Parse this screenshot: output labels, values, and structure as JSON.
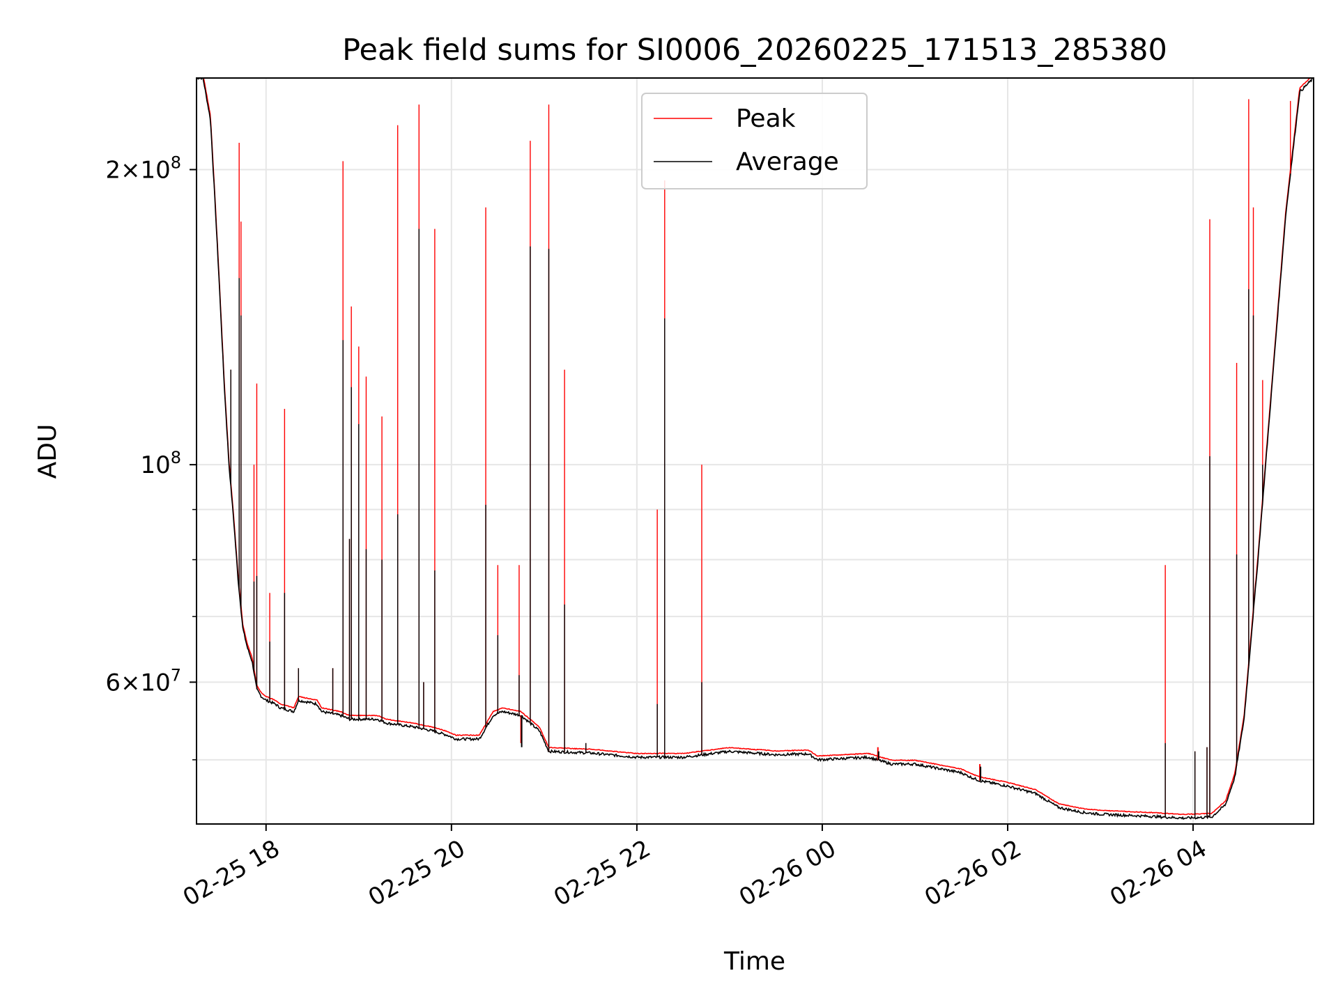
{
  "chart_data": {
    "type": "line",
    "title": "Peak field sums for SI0006_20260225_171513_285380",
    "xlabel": "Time",
    "ylabel": "ADU",
    "yscale": "log",
    "xlim_hours": [
      17.25,
      29.3
    ],
    "ylim": [
      43000000,
      248000000
    ],
    "x_ticks": [
      {
        "hours": 18,
        "label": "02-25 18"
      },
      {
        "hours": 20,
        "label": "02-25 20"
      },
      {
        "hours": 22,
        "label": "02-25 22"
      },
      {
        "hours": 24,
        "label": "02-26 00"
      },
      {
        "hours": 26,
        "label": "02-26 02"
      },
      {
        "hours": 28,
        "label": "02-26 04"
      }
    ],
    "y_major_ticks": [
      {
        "value": 60000000,
        "mantissa": "6",
        "exponent": "7"
      },
      {
        "value": 100000000,
        "mantissa": "",
        "exponent": "8"
      },
      {
        "value": 200000000,
        "mantissa": "2",
        "exponent": "8"
      }
    ],
    "y_minor_ticks": [
      50000000,
      70000000,
      80000000,
      90000000
    ],
    "grid": true,
    "legend": {
      "position": "upper-center",
      "entries": [
        {
          "name": "Peak",
          "color": "#ff0000"
        },
        {
          "name": "Average",
          "color": "#000000"
        }
      ]
    },
    "baseline": {
      "x_hours": [
        17.25,
        17.32,
        17.4,
        17.45,
        17.5,
        17.55,
        17.6,
        17.65,
        17.7,
        17.75,
        17.8,
        17.85,
        17.9,
        17.95,
        18.0,
        18.1,
        18.15,
        18.3,
        18.35,
        18.55,
        18.6,
        18.8,
        18.9,
        19.2,
        19.3,
        19.6,
        19.8,
        19.95,
        20.05,
        20.3,
        20.45,
        20.55,
        20.75,
        20.95,
        21.05,
        21.5,
        22.0,
        22.5,
        23.0,
        23.5,
        23.85,
        23.95,
        24.5,
        24.65,
        24.75,
        25.0,
        25.5,
        25.6,
        25.7,
        26.0,
        26.3,
        26.55,
        26.8,
        27.0,
        27.5,
        27.9,
        28.2,
        28.35,
        28.45,
        28.55,
        28.7,
        28.85,
        29.0,
        29.15,
        29.3
      ],
      "y_values": [
        248000000,
        248000000,
        225000000,
        185000000,
        150000000,
        120000000,
        100000000,
        88000000,
        76000000,
        68000000,
        65000000,
        63000000,
        59000000,
        58000000,
        57500000,
        57000000,
        56500000,
        56000000,
        57500000,
        57000000,
        56000000,
        55500000,
        55000000,
        55000000,
        54500000,
        54000000,
        53500000,
        53000000,
        52500000,
        52500000,
        55500000,
        56000000,
        55500000,
        53500000,
        51000000,
        50800000,
        50300000,
        50300000,
        51000000,
        50600000,
        50700000,
        50000000,
        50300000,
        49800000,
        49500000,
        49500000,
        48500000,
        48000000,
        47600000,
        47000000,
        46200000,
        44700000,
        44200000,
        44000000,
        43800000,
        43600000,
        43700000,
        45000000,
        48000000,
        55000000,
        80000000,
        120000000,
        180000000,
        240000000,
        248000000
      ]
    },
    "bumps": [
      {
        "x_hours": 24.6,
        "peak": 51500000,
        "average": 51000000
      },
      {
        "x_hours": 25.7,
        "peak": 49500000,
        "average": 49200000
      },
      {
        "x_hours": 20.75,
        "peak": 52000000,
        "average": 51500000
      }
    ],
    "spikes": [
      {
        "x_hours": 17.62,
        "peak": 125000000,
        "average": 125000000
      },
      {
        "x_hours": 17.71,
        "peak": 213000000,
        "average": 155000000
      },
      {
        "x_hours": 17.73,
        "peak": 177000000,
        "average": 142000000
      },
      {
        "x_hours": 17.87,
        "peak": 100000000,
        "average": 76000000
      },
      {
        "x_hours": 17.9,
        "peak": 121000000,
        "average": 77000000
      },
      {
        "x_hours": 18.04,
        "peak": 74000000,
        "average": 66000000
      },
      {
        "x_hours": 18.2,
        "peak": 114000000,
        "average": 74000000
      },
      {
        "x_hours": 18.35,
        "peak": 62000000,
        "average": 62000000
      },
      {
        "x_hours": 18.72,
        "peak": 62000000,
        "average": 62000000
      },
      {
        "x_hours": 18.83,
        "peak": 204000000,
        "average": 134000000
      },
      {
        "x_hours": 18.9,
        "peak": 84000000,
        "average": 84000000
      },
      {
        "x_hours": 18.92,
        "peak": 145000000,
        "average": 120000000
      },
      {
        "x_hours": 19.0,
        "peak": 132000000,
        "average": 110000000
      },
      {
        "x_hours": 19.08,
        "peak": 123000000,
        "average": 82000000
      },
      {
        "x_hours": 19.25,
        "peak": 112000000,
        "average": 80000000
      },
      {
        "x_hours": 19.42,
        "peak": 222000000,
        "average": 89000000
      },
      {
        "x_hours": 19.65,
        "peak": 233000000,
        "average": 174000000
      },
      {
        "x_hours": 19.7,
        "peak": 60000000,
        "average": 60000000
      },
      {
        "x_hours": 19.82,
        "peak": 174000000,
        "average": 78000000
      },
      {
        "x_hours": 20.37,
        "peak": 183000000,
        "average": 91000000
      },
      {
        "x_hours": 20.5,
        "peak": 79000000,
        "average": 67000000
      },
      {
        "x_hours": 20.73,
        "peak": 79000000,
        "average": 61000000
      },
      {
        "x_hours": 20.85,
        "peak": 214000000,
        "average": 167000000
      },
      {
        "x_hours": 21.05,
        "peak": 233000000,
        "average": 166000000
      },
      {
        "x_hours": 21.22,
        "peak": 125000000,
        "average": 72000000
      },
      {
        "x_hours": 21.45,
        "peak": 52000000,
        "average": 52000000
      },
      {
        "x_hours": 22.22,
        "peak": 90000000,
        "average": 57000000
      },
      {
        "x_hours": 22.3,
        "peak": 195000000,
        "average": 141000000
      },
      {
        "x_hours": 22.7,
        "peak": 100000000,
        "average": 60000000
      },
      {
        "x_hours": 27.7,
        "peak": 79000000,
        "average": 52000000
      },
      {
        "x_hours": 28.02,
        "peak": 51000000,
        "average": 51000000
      },
      {
        "x_hours": 28.18,
        "peak": 178000000,
        "average": 102000000
      },
      {
        "x_hours": 28.15,
        "peak": 51500000,
        "average": 51500000
      },
      {
        "x_hours": 28.47,
        "peak": 127000000,
        "average": 81000000
      },
      {
        "x_hours": 28.6,
        "peak": 236000000,
        "average": 151000000
      },
      {
        "x_hours": 28.65,
        "peak": 183000000,
        "average": 142000000
      },
      {
        "x_hours": 28.75,
        "peak": 122000000,
        "average": 100000000
      },
      {
        "x_hours": 29.05,
        "peak": 235000000,
        "average": 198000000
      }
    ]
  }
}
